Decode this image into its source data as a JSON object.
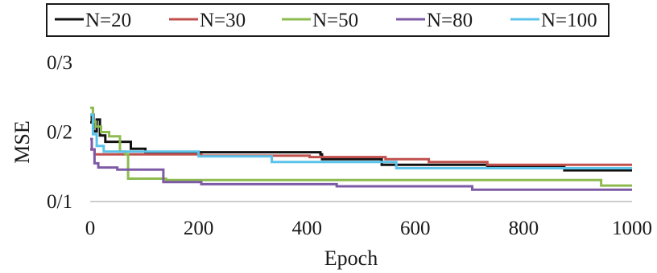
{
  "chart_data": {
    "type": "line",
    "xlabel": "Epoch",
    "ylabel": "MSE",
    "xlim": [
      0,
      1000
    ],
    "ylim": [
      0.1,
      0.3
    ],
    "grid": false,
    "legend_position": "top",
    "x_tick_labels": [
      "0",
      "200",
      "400",
      "600",
      "800",
      "1000"
    ],
    "y_tick_labels": [
      "0/1",
      "0/2",
      "0/3"
    ],
    "series": [
      {
        "name": "N=20",
        "color": "#111111",
        "steps": [
          [
            0,
            0.214
          ],
          [
            3,
            0.225
          ],
          [
            6,
            0.201
          ],
          [
            12,
            0.218
          ],
          [
            18,
            0.195
          ],
          [
            28,
            0.186
          ],
          [
            40,
            0.186
          ],
          [
            75,
            0.176
          ],
          [
            100,
            0.176
          ],
          [
            102,
            0.171
          ],
          [
            200,
            0.171
          ],
          [
            425,
            0.168
          ],
          [
            428,
            0.161
          ],
          [
            530,
            0.161
          ],
          [
            538,
            0.153
          ],
          [
            730,
            0.153
          ],
          [
            733,
            0.15
          ],
          [
            870,
            0.15
          ],
          [
            875,
            0.145
          ],
          [
            1000,
            0.145
          ]
        ]
      },
      {
        "name": "N=30",
        "color": "#C0504D",
        "steps": [
          [
            0,
            0.175
          ],
          [
            8,
            0.168
          ],
          [
            200,
            0.168
          ],
          [
            205,
            0.166
          ],
          [
            400,
            0.166
          ],
          [
            405,
            0.164
          ],
          [
            540,
            0.164
          ],
          [
            545,
            0.161
          ],
          [
            620,
            0.161
          ],
          [
            625,
            0.157
          ],
          [
            730,
            0.157
          ],
          [
            733,
            0.153
          ],
          [
            1000,
            0.153
          ]
        ]
      },
      {
        "name": "N=50",
        "color": "#8DBB4F",
        "steps": [
          [
            0,
            0.235
          ],
          [
            5,
            0.215
          ],
          [
            10,
            0.208
          ],
          [
            20,
            0.2
          ],
          [
            35,
            0.194
          ],
          [
            55,
            0.172
          ],
          [
            65,
            0.168
          ],
          [
            70,
            0.133
          ],
          [
            135,
            0.133
          ],
          [
            140,
            0.131
          ],
          [
            940,
            0.131
          ],
          [
            943,
            0.123
          ],
          [
            1000,
            0.123
          ]
        ]
      },
      {
        "name": "N=80",
        "color": "#7D5AA6",
        "steps": [
          [
            0,
            0.19
          ],
          [
            3,
            0.175
          ],
          [
            8,
            0.155
          ],
          [
            15,
            0.149
          ],
          [
            50,
            0.146
          ],
          [
            130,
            0.146
          ],
          [
            135,
            0.128
          ],
          [
            200,
            0.128
          ],
          [
            205,
            0.125
          ],
          [
            450,
            0.125
          ],
          [
            455,
            0.122
          ],
          [
            700,
            0.122
          ],
          [
            705,
            0.117
          ],
          [
            1000,
            0.117
          ]
        ]
      },
      {
        "name": "N=100",
        "color": "#5BC3EA",
        "steps": [
          [
            0,
            0.225
          ],
          [
            5,
            0.197
          ],
          [
            12,
            0.18
          ],
          [
            25,
            0.172
          ],
          [
            195,
            0.172
          ],
          [
            200,
            0.165
          ],
          [
            330,
            0.165
          ],
          [
            335,
            0.157
          ],
          [
            560,
            0.157
          ],
          [
            565,
            0.148
          ],
          [
            1000,
            0.148
          ]
        ]
      }
    ]
  }
}
